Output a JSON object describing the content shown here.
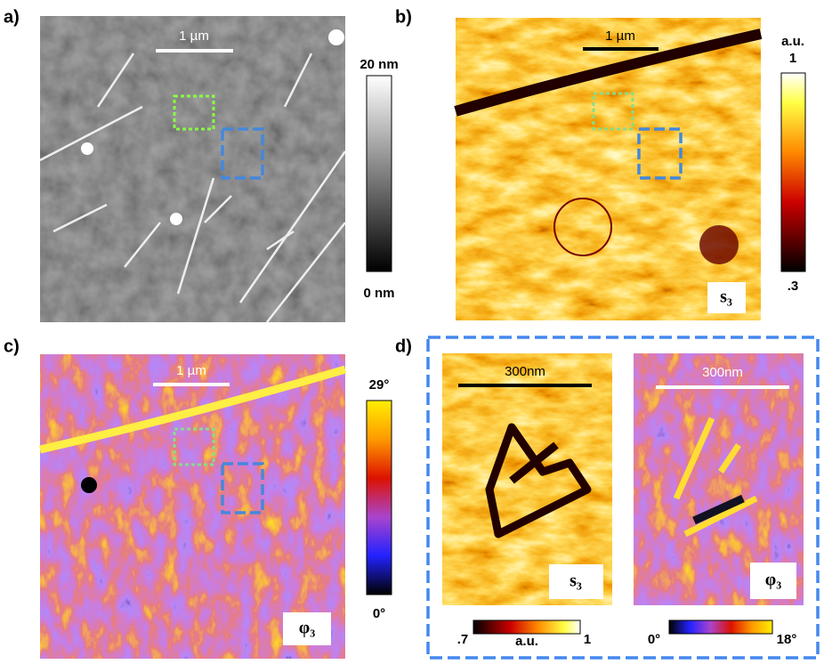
{
  "panels": [
    {
      "label": "a)",
      "scale_bar": "1 µm",
      "colorbar": {
        "top": "20 nm",
        "bottom": "0 nm"
      }
    },
    {
      "label": "b)",
      "scale_bar": "1 µm",
      "channel": "s₃",
      "colorbar": {
        "unit": "a.u.",
        "top": "1",
        "bottom": ".3"
      }
    },
    {
      "label": "c)",
      "scale_bar": "1 µm",
      "channel": "φ₃",
      "colorbar": {
        "top": "29°",
        "bottom": "0°"
      }
    },
    {
      "label": "d)",
      "insets": [
        {
          "scale_bar": "300nm",
          "channel": "s₃",
          "colorbar": {
            "left": ".7",
            "unit": "a.u.",
            "right": "1"
          }
        },
        {
          "scale_bar": "300nm",
          "channel": "φ₃",
          "colorbar": {
            "left": "0°",
            "right": "18°"
          }
        }
      ]
    }
  ]
}
